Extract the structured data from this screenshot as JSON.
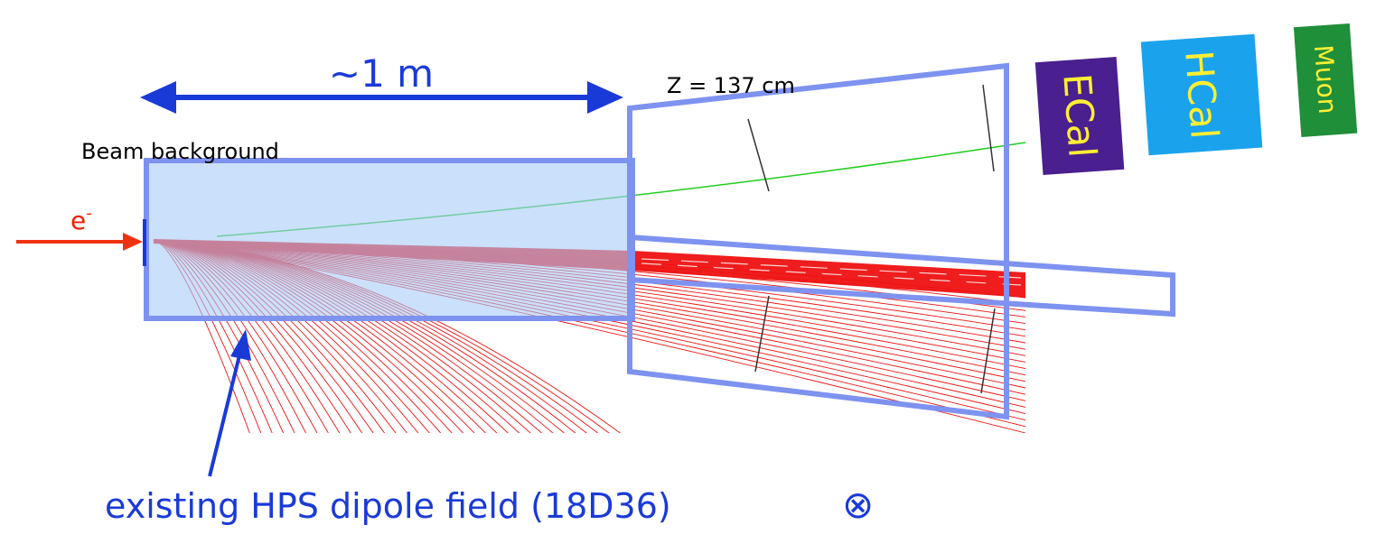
{
  "dimension_label": "~1 m",
  "z_label": "Z = 137 cm",
  "beam_background_label": "Beam background",
  "beam_label": "e",
  "beam_charge": "-",
  "dipole_label": "existing HPS dipole field (18D36)",
  "field_symbol": "⊗",
  "detectors": [
    {
      "name": "ECal",
      "color": "#4a1f8f"
    },
    {
      "name": "HCal",
      "color": "#1aa3ec"
    },
    {
      "name": "Muon",
      "color": "#1f8f3a"
    }
  ],
  "colors": {
    "arrow_blue": "#1a3ad8",
    "region_fill": "#c6defb",
    "region_stroke": "#7e92f0",
    "track_red": "#ee1111",
    "track_green": "#22cc22",
    "beam_arrow": "#ee3311",
    "detector_text": "#ffee33"
  }
}
